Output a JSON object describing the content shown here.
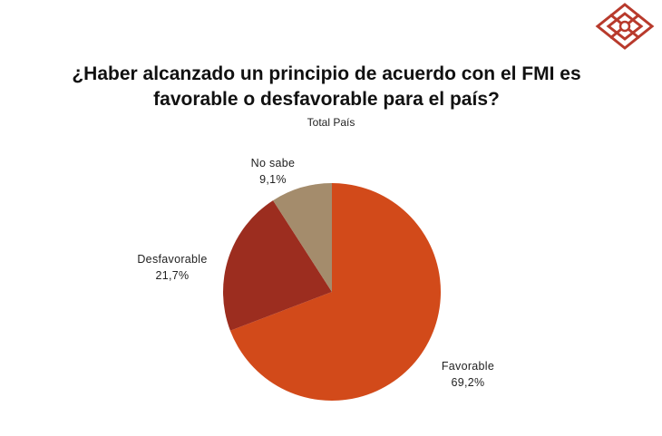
{
  "chart_data": {
    "type": "pie",
    "title": "¿Haber alcanzado un principio de acuerdo con el FMI es favorable o desfavorable para el país?",
    "subtitle": "Total País",
    "slices": [
      {
        "label": "Favorable",
        "value": 69.2,
        "display": "69,2%",
        "color": "#d24a1a"
      },
      {
        "label": "Desfavorable",
        "value": 21.7,
        "display": "21,7%",
        "color": "#9c2d1f"
      },
      {
        "label": "No sabe",
        "value": 9.1,
        "display": "9,1%",
        "color": "#a48c6c"
      }
    ],
    "legend": "none"
  },
  "logo": {
    "icon": "diamond-logo-icon",
    "color": "#b83a2c"
  }
}
